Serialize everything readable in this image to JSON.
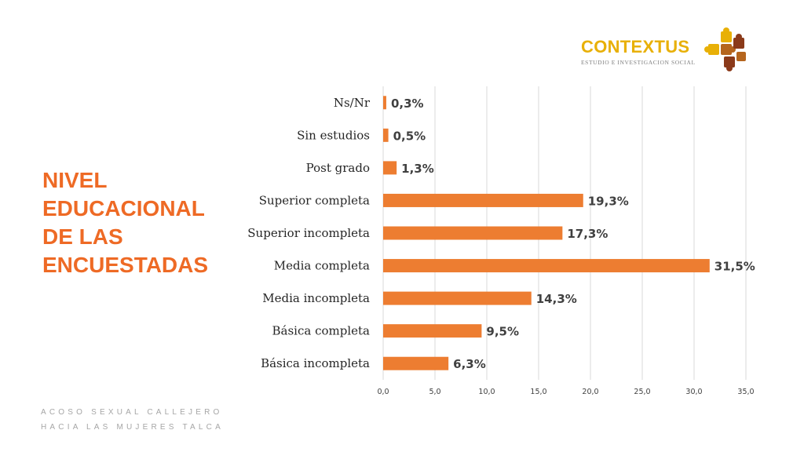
{
  "slide": {
    "title": "NIVEL\nEDUCACIONAL\nDE LAS\nENCUESTADAS",
    "title_color": "#ee6a25",
    "footer_line1": "ACOSO SEXUAL CALLEJERO",
    "footer_line2": "HACIA LAS MUJERES TALCA"
  },
  "logo": {
    "name": "CONTEXTUS",
    "tagline": "ESTUDIO E INVESTIGACION SOCIAL",
    "name_color": "#e8b007",
    "mark_icon": "puzzle-pieces-icon",
    "mark_colors": [
      "#e8b007",
      "#b5651d",
      "#8b3a1a"
    ]
  },
  "chart_data": {
    "type": "bar",
    "orientation": "horizontal",
    "categories": [
      "Ns/Nr",
      "Sin estudios",
      "Post grado",
      "Superior completa",
      "Superior incompleta",
      "Media completa",
      "Media incompleta",
      "Básica completa",
      "Básica incompleta"
    ],
    "values": [
      0.3,
      0.5,
      1.3,
      19.3,
      17.3,
      31.5,
      14.3,
      9.5,
      6.3
    ],
    "value_labels": [
      "0,3%",
      "0,5%",
      "1,3%",
      "19,3%",
      "17,3%",
      "31,5%",
      "14,3%",
      "9,5%",
      "6,3%"
    ],
    "xlim": [
      0,
      35
    ],
    "xticks": [
      0,
      5,
      10,
      15,
      20,
      25,
      30,
      35
    ],
    "xtick_labels": [
      "0,0",
      "5,0",
      "10,0",
      "15,0",
      "20,0",
      "25,0",
      "30,0",
      "35,0"
    ],
    "bar_color": "#ed7d31",
    "grid": true,
    "legend": "none"
  }
}
